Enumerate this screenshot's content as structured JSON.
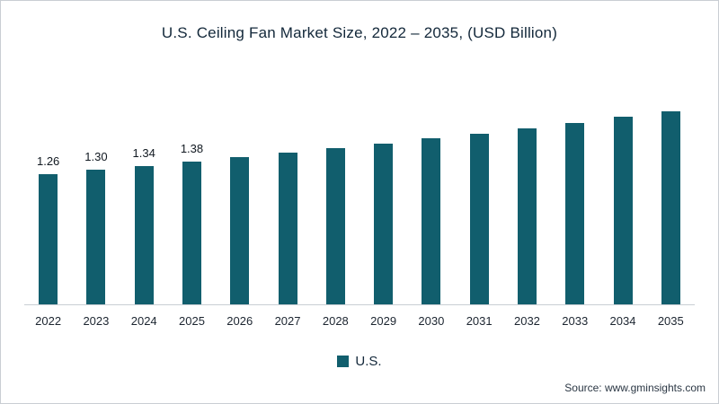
{
  "chart_data": {
    "type": "bar",
    "title": "U.S. Ceiling Fan Market Size, 2022 – 2035, (USD Billion)",
    "categories": [
      "2022",
      "2023",
      "2024",
      "2025",
      "2026",
      "2027",
      "2028",
      "2029",
      "2030",
      "2031",
      "2032",
      "2033",
      "2034",
      "2035"
    ],
    "values": [
      1.26,
      1.3,
      1.34,
      1.38,
      1.43,
      1.47,
      1.51,
      1.56,
      1.61,
      1.65,
      1.7,
      1.76,
      1.82,
      1.87
    ],
    "value_labels": [
      "1.26",
      "1.30",
      "1.34",
      "1.38",
      "",
      "",
      "",
      "",
      "",
      "",
      "",
      "",
      "",
      ""
    ],
    "xlabel": "",
    "ylabel": "",
    "ylim": [
      0,
      2
    ],
    "grid": false,
    "legend_position": "bottom-center",
    "series_name": "U.S.",
    "bar_color": "#115e6d"
  },
  "legend": {
    "us_label": "U.S."
  },
  "source": {
    "text": "Source: www.gminsights.com"
  }
}
